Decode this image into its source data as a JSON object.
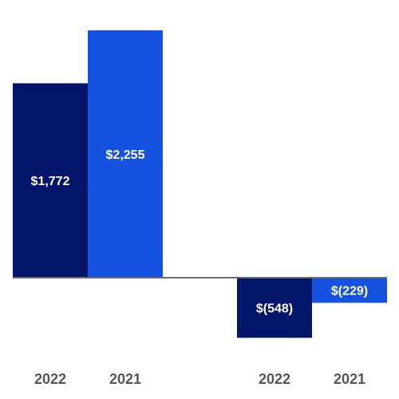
{
  "chart_data": {
    "type": "bar",
    "categories": [
      "2022",
      "2021",
      "2022",
      "2021"
    ],
    "values": [
      1772,
      2255,
      -548,
      -229
    ],
    "data_labels": [
      "$1,772",
      "$2,255",
      "$(548)",
      "$(229)"
    ],
    "bar_colors": [
      "#021568",
      "#1652e0",
      "#021568",
      "#1652e0"
    ],
    "axis_color": "#6b6b6b",
    "tick_label_color": "#555555",
    "ylim": [
      -700,
      2255
    ],
    "grid": false,
    "title": "",
    "xlabel": "",
    "ylabel": ""
  }
}
